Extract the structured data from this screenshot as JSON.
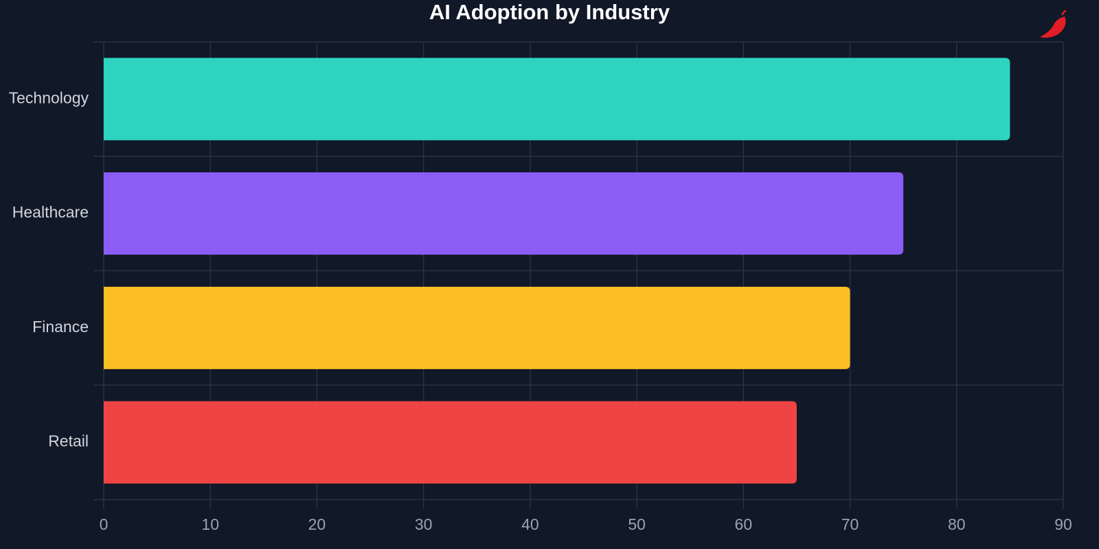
{
  "chart_data": {
    "type": "hbar",
    "title": "AI Adoption by Industry",
    "categories": [
      "Technology",
      "Healthcare",
      "Finance",
      "Retail"
    ],
    "values": [
      85,
      75,
      70,
      65
    ],
    "colors": [
      "#2dd4bf",
      "#8b5cf6",
      "#fbbf24",
      "#ef4444"
    ],
    "xlim": [
      0,
      90
    ],
    "xticks": [
      0,
      10,
      20,
      30,
      40,
      50,
      60,
      70,
      80,
      90
    ],
    "grid": true
  }
}
